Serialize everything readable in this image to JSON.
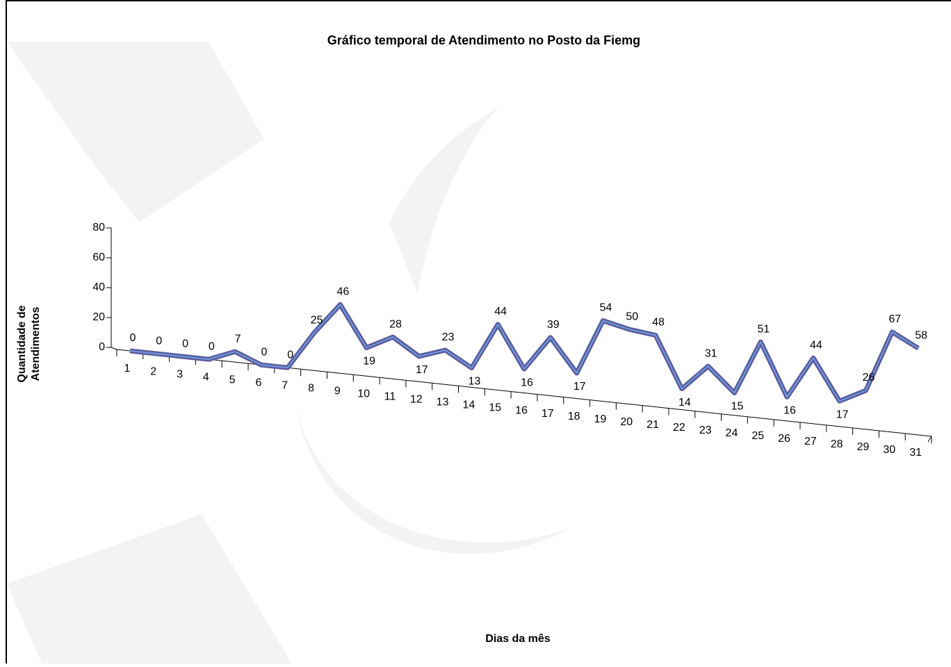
{
  "chart_data": {
    "type": "line",
    "title": "Gráfico temporal de Atendimento no Posto da Fiemg",
    "x_label": "Dias da mês",
    "y_label": [
      "Quantidade de",
      "Atendimentos"
    ],
    "categories": [
      "1",
      "2",
      "3",
      "4",
      "5",
      "6",
      "7",
      "8",
      "9",
      "10",
      "11",
      "12",
      "13",
      "14",
      "15",
      "16",
      "17",
      "18",
      "19",
      "20",
      "21",
      "22",
      "23",
      "24",
      "25",
      "26",
      "27",
      "28",
      "29",
      "30",
      "31"
    ],
    "values": [
      0,
      0,
      0,
      0,
      7,
      0,
      0,
      25,
      46,
      19,
      28,
      17,
      23,
      13,
      44,
      16,
      39,
      17,
      54,
      50,
      48,
      14,
      31,
      15,
      51,
      16,
      44,
      17,
      26,
      67,
      58
    ],
    "color": "#5b5b9e",
    "ylim": [
      0,
      80
    ],
    "yticks": [
      0,
      20,
      40,
      60,
      80
    ]
  }
}
